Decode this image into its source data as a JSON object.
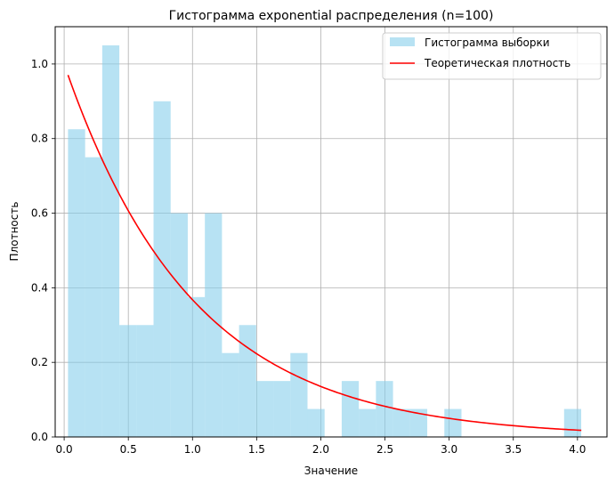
{
  "chart_data": {
    "type": "bar",
    "title": "Гистограмма exponential распределения (n=100)",
    "xlabel": "Значение",
    "ylabel": "Плотность",
    "xlim": [
      -0.07,
      4.23
    ],
    "ylim": [
      0,
      1.1
    ],
    "grid": true,
    "legend_position": "top-right",
    "x_ticks": [
      0.0,
      0.5,
      1.0,
      1.5,
      2.0,
      2.5,
      3.0,
      3.5,
      4.0
    ],
    "x_tick_labels": [
      "0.0",
      "0.5",
      "1.0",
      "1.5",
      "2.0",
      "2.5",
      "3.0",
      "3.5",
      "4.0"
    ],
    "y_ticks": [
      0.0,
      0.2,
      0.4,
      0.6,
      0.8,
      1.0
    ],
    "y_tick_labels": [
      "0.0",
      "0.2",
      "0.4",
      "0.6",
      "0.8",
      "1.0"
    ],
    "histogram": {
      "name": "Гистограмма выборки",
      "color": "#87ceeb",
      "opacity": 0.6,
      "bin_start": 0.03,
      "bin_width": 0.1333,
      "values": [
        0.825,
        0.75,
        1.05,
        0.3,
        0.3,
        0.9,
        0.6,
        0.375,
        0.6,
        0.225,
        0.3,
        0.15,
        0.15,
        0.225,
        0.075,
        0,
        0.15,
        0.075,
        0.15,
        0.075,
        0.075,
        0,
        0.075,
        0,
        0,
        0,
        0,
        0,
        0,
        0.075
      ]
    },
    "series": [
      {
        "name": "Теоретическая плотность",
        "type": "line",
        "color": "#ff0000",
        "function": "exp",
        "lambda": 1.0,
        "x_range": [
          0.03,
          4.03
        ]
      }
    ]
  }
}
